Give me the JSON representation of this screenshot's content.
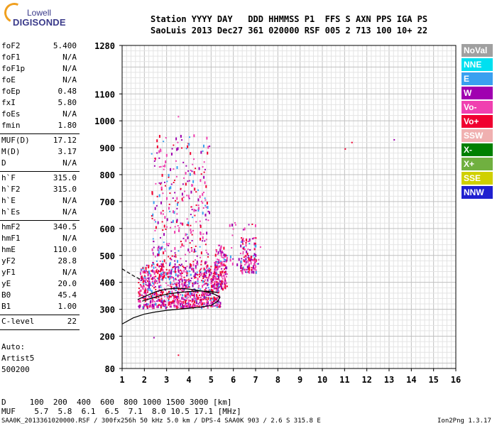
{
  "logo": {
    "line1": "Lowell",
    "line2": "DIGISONDE"
  },
  "header": {
    "row1": "Station YYYY DAY   DDD HHMMSS P1  FFS S AXN PPS IGA PS",
    "row2": "SaoLuis 2013 Dec27 361 020000 RSF 005 2 713 100 10+ 22"
  },
  "params": {
    "group1": [
      {
        "k": "foF2",
        "v": "5.400"
      },
      {
        "k": "foF1",
        "v": "N/A"
      },
      {
        "k": "foF1p",
        "v": "N/A"
      },
      {
        "k": "foE",
        "v": "N/A"
      },
      {
        "k": "foEp",
        "v": "0.48"
      },
      {
        "k": "fxI",
        "v": "5.80"
      },
      {
        "k": "foEs",
        "v": "N/A"
      },
      {
        "k": "fmin",
        "v": "1.80"
      }
    ],
    "group2": [
      {
        "k": "MUF(D)",
        "v": "17.12"
      },
      {
        "k": "M(D)",
        "v": "3.17"
      },
      {
        "k": "D",
        "v": "N/A"
      }
    ],
    "group3": [
      {
        "k": "h`F",
        "v": "315.0"
      },
      {
        "k": "h`F2",
        "v": "315.0"
      },
      {
        "k": "h`E",
        "v": "N/A"
      },
      {
        "k": "h`Es",
        "v": "N/A"
      }
    ],
    "group4": [
      {
        "k": "hmF2",
        "v": "340.5"
      },
      {
        "k": "hmF1",
        "v": "N/A"
      },
      {
        "k": "hmE",
        "v": "110.0"
      },
      {
        "k": "yF2",
        "v": "28.8"
      },
      {
        "k": "yF1",
        "v": "N/A"
      },
      {
        "k": "yE",
        "v": "20.0"
      },
      {
        "k": "B0",
        "v": "45.4"
      },
      {
        "k": "B1",
        "v": "1.00"
      }
    ],
    "group5": [
      {
        "k": "C-level",
        "v": "22"
      }
    ],
    "footer_lines": [
      "Auto:",
      "Artist5",
      "500200"
    ]
  },
  "legend": [
    {
      "label": "NoVal",
      "color": "#a0a0a0"
    },
    {
      "label": "NNE",
      "color": "#00e0f0"
    },
    {
      "label": "E",
      "color": "#3aa0f0"
    },
    {
      "label": "W",
      "color": "#a000b0"
    },
    {
      "label": "Vo-",
      "color": "#f040b0"
    },
    {
      "label": "Vo+",
      "color": "#f00030"
    },
    {
      "label": "SSW",
      "color": "#f0b0b0"
    },
    {
      "label": "X-",
      "color": "#008000"
    },
    {
      "label": "X+",
      "color": "#70b040"
    },
    {
      "label": "SSE",
      "color": "#d0d000"
    },
    {
      "label": "NNW",
      "color": "#2020d0"
    }
  ],
  "muf_table": {
    "row_d": "D     100  200  400  600  800 1000 1500 3000 [km]",
    "row_muf": "MUF    5.7  5.8  6.1  6.5  7.1  8.0 10.5 17.1 [MHz]"
  },
  "footer": {
    "left": "SAA0K_2013361020000.RSF / 300fx256h 50 kHz 5.0 km / DPS-4 SAA0K 903 / 2.6 S 315.8 E",
    "right": "Ion2Png 1.3.17"
  },
  "chart_data": {
    "type": "scatter",
    "xlim": [
      1,
      16
    ],
    "ylim": [
      80,
      1280
    ],
    "x_ticks": [
      1,
      2,
      3,
      4,
      5,
      6,
      7,
      8,
      9,
      10,
      11,
      12,
      13,
      14,
      15,
      16
    ],
    "y_ticks": [
      80,
      200,
      300,
      400,
      500,
      600,
      700,
      800,
      900,
      1000,
      1100,
      1280
    ],
    "grid": true,
    "legend_position": "right",
    "profile_curve": [
      [
        1.0,
        245
      ],
      [
        1.5,
        268
      ],
      [
        2.0,
        282
      ],
      [
        2.5,
        290
      ],
      [
        3.0,
        296
      ],
      [
        3.5,
        300
      ],
      [
        4.0,
        304
      ],
      [
        4.5,
        308
      ],
      [
        5.0,
        314
      ],
      [
        5.3,
        330
      ],
      [
        5.4,
        345
      ],
      [
        5.1,
        358
      ],
      [
        4.6,
        368
      ],
      [
        4.0,
        375
      ],
      [
        3.5,
        378
      ],
      [
        3.0,
        375
      ],
      [
        2.5,
        365
      ],
      [
        2.1,
        350
      ],
      [
        1.8,
        340
      ],
      [
        1.7,
        336
      ]
    ],
    "trace_curve": [
      [
        1.9,
        330
      ],
      [
        2.2,
        338
      ],
      [
        2.6,
        348
      ],
      [
        3.0,
        356
      ],
      [
        3.5,
        362
      ],
      [
        4.0,
        366
      ],
      [
        4.5,
        368
      ],
      [
        5.0,
        366
      ],
      [
        5.3,
        362
      ]
    ],
    "dashed_curve": [
      [
        1.0,
        450
      ],
      [
        1.3,
        435
      ],
      [
        1.6,
        420
      ],
      [
        1.9,
        408
      ]
    ],
    "clusters": [
      {
        "xmin": 1.7,
        "xmax": 5.4,
        "ymin": 310,
        "ymax": 470,
        "n": 900
      },
      {
        "xmin": 2.3,
        "xmax": 4.9,
        "ymin": 470,
        "ymax": 950,
        "n": 320
      },
      {
        "xmin": 5.1,
        "xmax": 5.7,
        "ymin": 380,
        "ymax": 540,
        "n": 140
      },
      {
        "xmin": 6.3,
        "xmax": 7.0,
        "ymin": 440,
        "ymax": 570,
        "n": 120
      },
      {
        "xmin": 5.8,
        "xmax": 7.2,
        "ymin": 470,
        "ymax": 630,
        "n": 30
      }
    ],
    "outliers": [
      [
        11.0,
        898
      ],
      [
        11.3,
        922
      ],
      [
        13.2,
        932
      ],
      [
        3.5,
        1018
      ],
      [
        3.5,
        132
      ],
      [
        2.4,
        197
      ],
      [
        4.0,
        942
      ],
      [
        2.3,
        880
      ]
    ]
  }
}
